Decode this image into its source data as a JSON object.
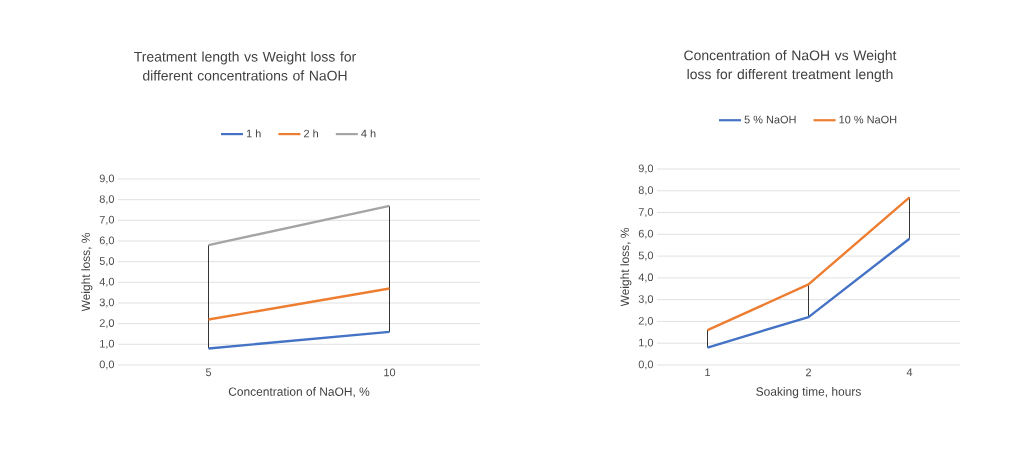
{
  "chart_data": [
    {
      "type": "line",
      "title": "Treatment length vs Weight loss for different concentrations of NaOH",
      "xlabel": "Concentration of NaOH, %",
      "ylabel": "Weight loss, %",
      "categories": [
        "5",
        "10"
      ],
      "series": [
        {
          "name": "1 h",
          "color": "#4472c4",
          "values": [
            0.8,
            1.6
          ],
          "errors": [
            [
              0.8,
              5.8
            ],
            [
              1.6,
              7.7
            ]
          ]
        },
        {
          "name": "2 h",
          "color": "#ed7d31",
          "values": [
            2.2,
            3.7
          ]
        },
        {
          "name": "4 h",
          "color": "#a5a5a5",
          "values": [
            5.8,
            7.7
          ]
        }
      ],
      "ylim": [
        0,
        9
      ],
      "yticks": [
        {
          "value": 0,
          "label": "0,0"
        },
        {
          "value": 1,
          "label": "1,0"
        },
        {
          "value": 2,
          "label": "2,0"
        },
        {
          "value": 3,
          "label": "3,0"
        },
        {
          "value": 4,
          "label": "4,0"
        },
        {
          "value": 5,
          "label": "5,0"
        },
        {
          "value": 6,
          "label": "6,0"
        },
        {
          "value": 7,
          "label": "7,0"
        },
        {
          "value": 8,
          "label": "8,0"
        },
        {
          "value": 9,
          "label": "9,0"
        }
      ],
      "grid": "y",
      "legend": "top"
    },
    {
      "type": "line",
      "title": "Concentration of NaOH vs Weight loss for different treatment length",
      "xlabel": "Soaking time,  hours",
      "ylabel": "Weight loss, %",
      "categories": [
        "1",
        "2",
        "4"
      ],
      "series": [
        {
          "name": "5 % NaOH",
          "color": "#4472c4",
          "values": [
            0.8,
            2.2,
            5.8
          ],
          "errors": [
            [
              0.8,
              1.6
            ],
            [
              2.2,
              3.7
            ],
            [
              5.8,
              7.7
            ]
          ]
        },
        {
          "name": "10 % NaOH",
          "color": "#ed7d31",
          "values": [
            1.6,
            3.7,
            7.7
          ]
        }
      ],
      "ylim": [
        0,
        9
      ],
      "yticks": [
        {
          "value": 0,
          "label": "0,0"
        },
        {
          "value": 1,
          "label": "1,0"
        },
        {
          "value": 2,
          "label": "2,0"
        },
        {
          "value": 3,
          "label": "3,0"
        },
        {
          "value": 4,
          "label": "4,0"
        },
        {
          "value": 5,
          "label": "5,0"
        },
        {
          "value": 6,
          "label": "6,0"
        },
        {
          "value": 7,
          "label": "7,0"
        },
        {
          "value": 8,
          "label": "8,0"
        },
        {
          "value": 9,
          "label": "9,0"
        }
      ],
      "grid": "y",
      "legend": "top"
    }
  ]
}
